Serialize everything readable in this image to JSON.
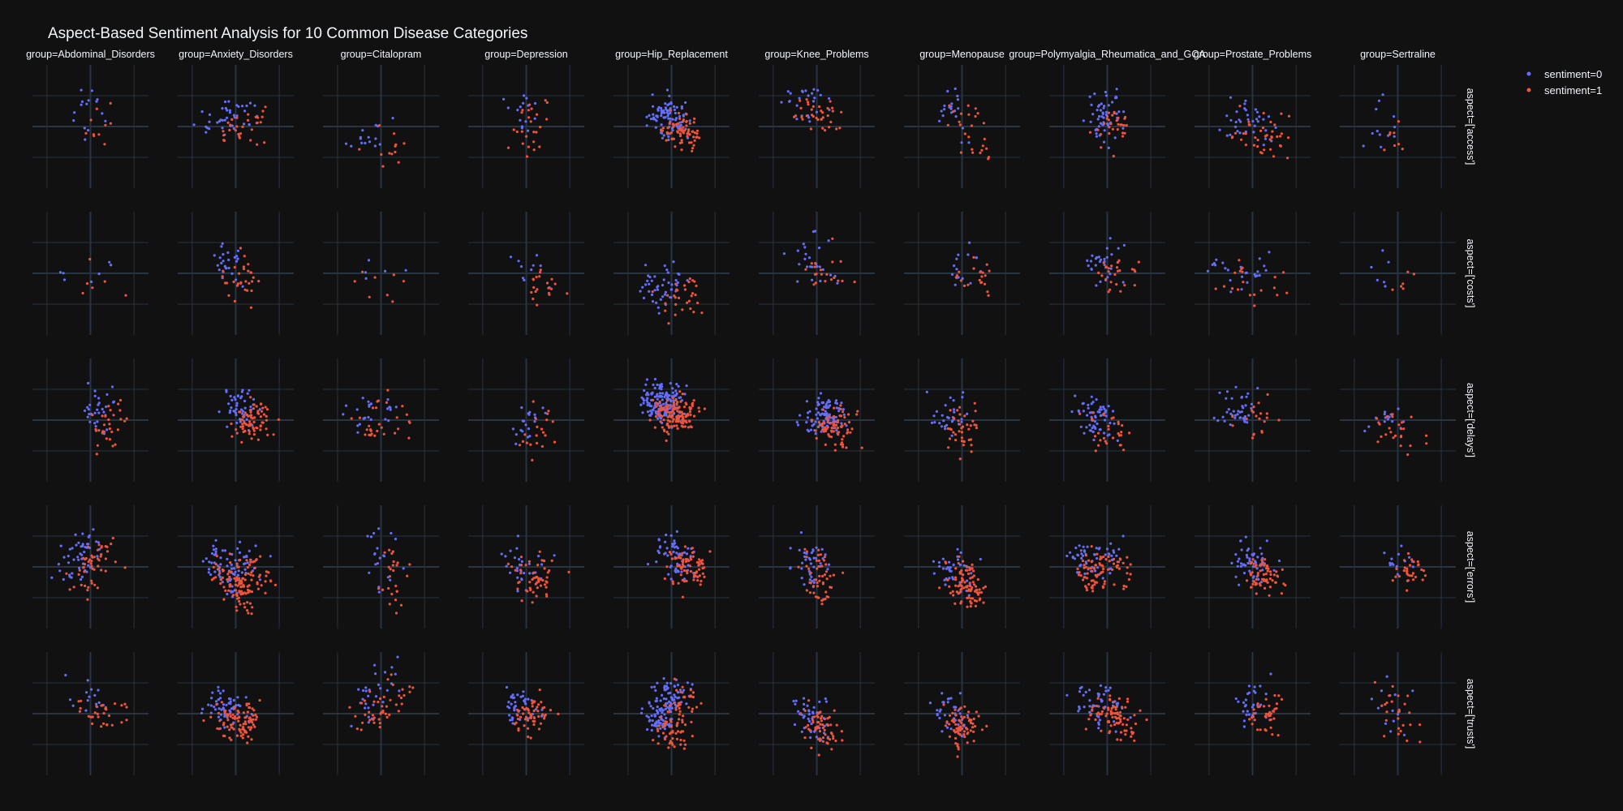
{
  "colors": {
    "background": "#111111",
    "grid": "#283442",
    "text": "#f2f5fa",
    "sentiment_0": "#636efa",
    "sentiment_1": "#ef553b"
  },
  "chart_data": {
    "type": "scatter",
    "title": "Aspect-Based Sentiment Analysis for 10 Common Disease Categories",
    "facet_columns": [
      "group=Abdominal_Disorders",
      "group=Anxiety_Disorders",
      "group=Citalopram",
      "group=Depression",
      "group=Hip_Replacement",
      "group=Knee_Problems",
      "group=Menopause",
      "group=Polymyalgia_Rheumatica_and_GCA",
      "group=Prostate_Problems",
      "group=Sertraline"
    ],
    "facet_rows": [
      "aspect=['access']",
      "aspect=['costs']",
      "aspect=['delays']",
      "aspect=['errors']",
      "aspect=['trusts']"
    ],
    "xlim": [
      -1,
      1
    ],
    "ylim": [
      -1,
      1
    ],
    "grid": true,
    "legend": {
      "placement": "top-right",
      "entries": [
        "sentiment=0",
        "sentiment=1"
      ]
    },
    "series": [
      {
        "name": "sentiment=0",
        "color": "#636efa"
      },
      {
        "name": "sentiment=1",
        "color": "#ef553b"
      }
    ],
    "point_counts": [
      [
        [
          15,
          10
        ],
        [
          40,
          30
        ],
        [
          15,
          12
        ],
        [
          15,
          25
        ],
        [
          90,
          70
        ],
        [
          25,
          35
        ],
        [
          20,
          25
        ],
        [
          55,
          30
        ],
        [
          35,
          40
        ],
        [
          12,
          8
        ]
      ],
      [
        [
          8,
          6
        ],
        [
          25,
          30
        ],
        [
          5,
          8
        ],
        [
          10,
          20
        ],
        [
          45,
          30
        ],
        [
          25,
          20
        ],
        [
          15,
          20
        ],
        [
          30,
          25
        ],
        [
          25,
          20
        ],
        [
          6,
          6
        ]
      ],
      [
        [
          30,
          30
        ],
        [
          50,
          70
        ],
        [
          25,
          30
        ],
        [
          20,
          20
        ],
        [
          150,
          130
        ],
        [
          100,
          70
        ],
        [
          30,
          40
        ],
        [
          60,
          30
        ],
        [
          40,
          20
        ],
        [
          15,
          25
        ]
      ],
      [
        [
          50,
          50
        ],
        [
          80,
          120
        ],
        [
          20,
          25
        ],
        [
          30,
          50
        ],
        [
          60,
          70
        ],
        [
          40,
          50
        ],
        [
          40,
          90
        ],
        [
          60,
          80
        ],
        [
          55,
          60
        ],
        [
          15,
          30
        ]
      ],
      [
        [
          15,
          30
        ],
        [
          60,
          90
        ],
        [
          30,
          45
        ],
        [
          40,
          55
        ],
        [
          130,
          80
        ],
        [
          45,
          60
        ],
        [
          40,
          70
        ],
        [
          50,
          80
        ],
        [
          30,
          40
        ],
        [
          15,
          25
        ]
      ]
    ]
  }
}
